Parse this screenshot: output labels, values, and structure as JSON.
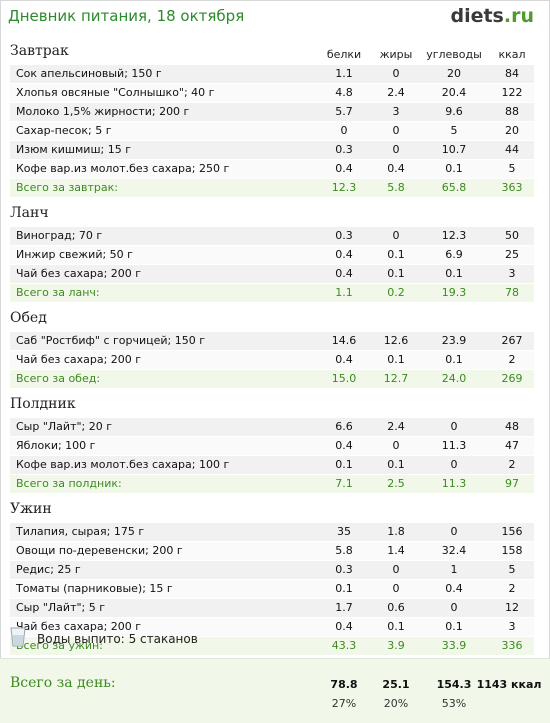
{
  "header": {
    "title": "Дневник питания, 18 октября",
    "logo_main": "diets",
    "logo_tld": ".ru"
  },
  "columns": [
    "белки",
    "жиры",
    "углеводы",
    "ккал"
  ],
  "meals": [
    {
      "name": "Завтрак",
      "items": [
        {
          "name": "Сок апельсиновый; 150 г",
          "b": "1.1",
          "z": "0",
          "u": "20",
          "k": "84"
        },
        {
          "name": "Хлопья овсяные \"Солнышко\"; 40 г",
          "b": "4.8",
          "z": "2.4",
          "u": "20.4",
          "k": "122"
        },
        {
          "name": "Молоко 1,5% жирности; 200 г",
          "b": "5.7",
          "z": "3",
          "u": "9.6",
          "k": "88"
        },
        {
          "name": "Сахар-песок; 5 г",
          "b": "0",
          "z": "0",
          "u": "5",
          "k": "20"
        },
        {
          "name": "Изюм кишмиш; 15 г",
          "b": "0.3",
          "z": "0",
          "u": "10.7",
          "k": "44"
        },
        {
          "name": "Кофе вар.из молот.без сахара; 250 г",
          "b": "0.4",
          "z": "0.4",
          "u": "0.1",
          "k": "5"
        }
      ],
      "total": {
        "label": "Всего за завтрак:",
        "b": "12.3",
        "z": "5.8",
        "u": "65.8",
        "k": "363"
      }
    },
    {
      "name": "Ланч",
      "items": [
        {
          "name": "Виноград; 70 г",
          "b": "0.3",
          "z": "0",
          "u": "12.3",
          "k": "50"
        },
        {
          "name": "Инжир свежий; 50 г",
          "b": "0.4",
          "z": "0.1",
          "u": "6.9",
          "k": "25"
        },
        {
          "name": "Чай без сахара; 200 г",
          "b": "0.4",
          "z": "0.1",
          "u": "0.1",
          "k": "3"
        }
      ],
      "total": {
        "label": "Всего за ланч:",
        "b": "1.1",
        "z": "0.2",
        "u": "19.3",
        "k": "78"
      }
    },
    {
      "name": "Обед",
      "items": [
        {
          "name": "Саб \"Ростбиф\" с горчицей; 150 г",
          "b": "14.6",
          "z": "12.6",
          "u": "23.9",
          "k": "267"
        },
        {
          "name": "Чай без сахара; 200 г",
          "b": "0.4",
          "z": "0.1",
          "u": "0.1",
          "k": "2"
        }
      ],
      "total": {
        "label": "Всего за обед:",
        "b": "15.0",
        "z": "12.7",
        "u": "24.0",
        "k": "269"
      }
    },
    {
      "name": "Полдник",
      "items": [
        {
          "name": "Сыр \"Лайт\"; 20 г",
          "b": "6.6",
          "z": "2.4",
          "u": "0",
          "k": "48"
        },
        {
          "name": "Яблоки; 100 г",
          "b": "0.4",
          "z": "0",
          "u": "11.3",
          "k": "47"
        },
        {
          "name": "Кофе вар.из молот.без сахара; 100 г",
          "b": "0.1",
          "z": "0.1",
          "u": "0",
          "k": "2"
        }
      ],
      "total": {
        "label": "Всего за полдник:",
        "b": "7.1",
        "z": "2.5",
        "u": "11.3",
        "k": "97"
      }
    },
    {
      "name": "Ужин",
      "items": [
        {
          "name": "Тилапия, сырая; 175 г",
          "b": "35",
          "z": "1.8",
          "u": "0",
          "k": "156"
        },
        {
          "name": "Овощи по-деревенски; 200 г",
          "b": "5.8",
          "z": "1.4",
          "u": "32.4",
          "k": "158"
        },
        {
          "name": "Редис; 25 г",
          "b": "0.3",
          "z": "0",
          "u": "1",
          "k": "5"
        },
        {
          "name": "Томаты (парниковые); 15 г",
          "b": "0.1",
          "z": "0",
          "u": "0.4",
          "k": "2"
        },
        {
          "name": "Сыр \"Лайт\"; 5 г",
          "b": "1.7",
          "z": "0.6",
          "u": "0",
          "k": "12"
        },
        {
          "name": "Чай без сахара; 200 г",
          "b": "0.4",
          "z": "0.1",
          "u": "0.1",
          "k": "3"
        }
      ],
      "total": {
        "label": "Всего за ужин:",
        "b": "43.3",
        "z": "3.9",
        "u": "33.9",
        "k": "336"
      }
    }
  ],
  "water": {
    "label": "Воды выпито:",
    "value": "5 стаканов",
    "icon": "glass-icon"
  },
  "day_total": {
    "label": "Всего за день:",
    "b": "78.8",
    "z": "25.1",
    "u": "154.3",
    "k": "1143 ккал",
    "b_pct": "27%",
    "z_pct": "20%",
    "u_pct": "53%"
  },
  "colors": {
    "accent": "#3d8a1f",
    "title": "#2d8a2d",
    "total_bg": "#f1f8ea"
  }
}
